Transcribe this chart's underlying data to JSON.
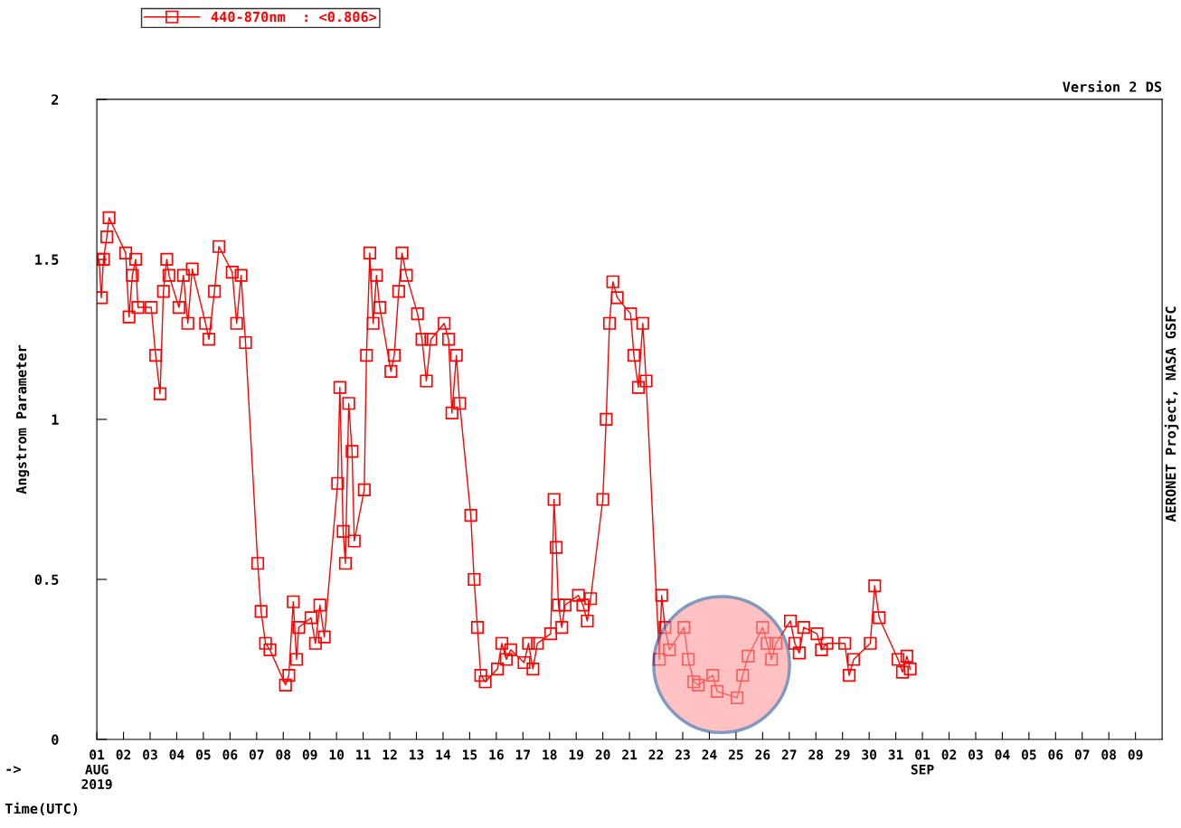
{
  "chart_data": {
    "type": "line",
    "title": "Version 2 DS",
    "xlabel": "Time(UTC)",
    "ylabel": "Angstrom Parameter",
    "annotations": [
      "->",
      "AERONET Project, NASA GSFC"
    ],
    "legend": "top left",
    "marker": "square",
    "line_style": "solid",
    "grid": false,
    "xlim": [
      "2019-08-01",
      "2019-09-10"
    ],
    "ylim": [
      0,
      2
    ],
    "yticks": [
      0,
      0.5,
      1,
      1.5,
      2
    ],
    "xticks": [
      {
        "value": "2019-08-01",
        "label": "01\nAUG\n2019"
      },
      {
        "value": "2019-08-02",
        "label": "02"
      },
      {
        "value": "2019-08-03",
        "label": "03"
      },
      {
        "value": "2019-08-04",
        "label": "04"
      },
      {
        "value": "2019-08-05",
        "label": "05"
      },
      {
        "value": "2019-08-06",
        "label": "06"
      },
      {
        "value": "2019-08-07",
        "label": "07"
      },
      {
        "value": "2019-08-08",
        "label": "08"
      },
      {
        "value": "2019-08-09",
        "label": "09"
      },
      {
        "value": "2019-08-10",
        "label": "10"
      },
      {
        "value": "2019-08-11",
        "label": "11"
      },
      {
        "value": "2019-08-12",
        "label": "12"
      },
      {
        "value": "2019-08-13",
        "label": "13"
      },
      {
        "value": "2019-08-14",
        "label": "14"
      },
      {
        "value": "2019-08-15",
        "label": "15"
      },
      {
        "value": "2019-08-16",
        "label": "16"
      },
      {
        "value": "2019-08-17",
        "label": "17"
      },
      {
        "value": "2019-08-18",
        "label": "18"
      },
      {
        "value": "2019-08-19",
        "label": "19"
      },
      {
        "value": "2019-08-20",
        "label": "20"
      },
      {
        "value": "2019-08-21",
        "label": "21"
      },
      {
        "value": "2019-08-22",
        "label": "22"
      },
      {
        "value": "2019-08-23",
        "label": "23"
      },
      {
        "value": "2019-08-24",
        "label": "24"
      },
      {
        "value": "2019-08-25",
        "label": "25"
      },
      {
        "value": "2019-08-26",
        "label": "26"
      },
      {
        "value": "2019-08-27",
        "label": "27"
      },
      {
        "value": "2019-08-28",
        "label": "28"
      },
      {
        "value": "2019-08-29",
        "label": "29"
      },
      {
        "value": "2019-08-30",
        "label": "30"
      },
      {
        "value": "2019-08-31",
        "label": "31"
      },
      {
        "value": "2019-09-01",
        "label": "01\nSEP"
      },
      {
        "value": "2019-09-02",
        "label": "02"
      },
      {
        "value": "2019-09-03",
        "label": "03"
      },
      {
        "value": "2019-09-04",
        "label": "04"
      },
      {
        "value": "2019-09-05",
        "label": "05"
      },
      {
        "value": "2019-09-06",
        "label": "06"
      },
      {
        "value": "2019-09-07",
        "label": "07"
      },
      {
        "value": "2019-09-08",
        "label": "08"
      },
      {
        "value": "2019-09-09",
        "label": "09"
      }
    ],
    "series": [
      {
        "name": "440-870nm  : <0.806>",
        "color": "#ff0000",
        "x": [
          "2019-08-01T02:00",
          "2019-08-01T04:00",
          "2019-08-01T06:00",
          "2019-08-01T09:00",
          "2019-08-01T11:00",
          "2019-08-02T02:00",
          "2019-08-02T05:00",
          "2019-08-02T08:00",
          "2019-08-02T11:00",
          "2019-08-02T13:00",
          "2019-08-03T01:00",
          "2019-08-03T05:00",
          "2019-08-03T09:00",
          "2019-08-03T12:00",
          "2019-08-03T15:00",
          "2019-08-03T17:00",
          "2019-08-04T02:00",
          "2019-08-04T06:00",
          "2019-08-04T10:00",
          "2019-08-04T14:00",
          "2019-08-05T02:00",
          "2019-08-05T05:00",
          "2019-08-05T10:00",
          "2019-08-05T14:00",
          "2019-08-06T02:00",
          "2019-08-06T06:00",
          "2019-08-06T10:00",
          "2019-08-06T14:00",
          "2019-08-07T01:00",
          "2019-08-07T04:00",
          "2019-08-07T08:00",
          "2019-08-07T12:00",
          "2019-08-08T02:00",
          "2019-08-08T05:00",
          "2019-08-08T09:00",
          "2019-08-08T12:00",
          "2019-08-08T14:00",
          "2019-08-09T01:00",
          "2019-08-09T05:00",
          "2019-08-09T09:00",
          "2019-08-09T13:00",
          "2019-08-10T01:00",
          "2019-08-10T03:00",
          "2019-08-10T06:00",
          "2019-08-10T08:00",
          "2019-08-10T11:00",
          "2019-08-10T14:00",
          "2019-08-10T16:00",
          "2019-08-11T01:00",
          "2019-08-11T03:00",
          "2019-08-11T06:00",
          "2019-08-11T09:00",
          "2019-08-11T12:00",
          "2019-08-11T15:00",
          "2019-08-12T01:00",
          "2019-08-12T04:00",
          "2019-08-12T08:00",
          "2019-08-12T11:00",
          "2019-08-12T15:00",
          "2019-08-13T01:00",
          "2019-08-13T05:00",
          "2019-08-13T09:00",
          "2019-08-13T13:00",
          "2019-08-14T01:00",
          "2019-08-14T05:00",
          "2019-08-14T08:00",
          "2019-08-14T12:00",
          "2019-08-14T15:00",
          "2019-08-15T01:00",
          "2019-08-15T04:00",
          "2019-08-15T07:00",
          "2019-08-15T10:00",
          "2019-08-15T14:00",
          "2019-08-16T01:00",
          "2019-08-16T05:00",
          "2019-08-16T09:00",
          "2019-08-16T13:00",
          "2019-08-17T01:00",
          "2019-08-17T05:00",
          "2019-08-17T09:00",
          "2019-08-17T13:00",
          "2019-08-18T01:00",
          "2019-08-18T04:00",
          "2019-08-18T06:00",
          "2019-08-18T08:00",
          "2019-08-18T11:00",
          "2019-08-18T14:00",
          "2019-08-19T02:00",
          "2019-08-19T06:00",
          "2019-08-19T10:00",
          "2019-08-19T13:00",
          "2019-08-20T00:00",
          "2019-08-20T03:00",
          "2019-08-20T06:00",
          "2019-08-20T09:00",
          "2019-08-20T13:00",
          "2019-08-21T01:00",
          "2019-08-21T04:00",
          "2019-08-21T08:00",
          "2019-08-21T12:00",
          "2019-08-21T15:00",
          "2019-08-22T03:00",
          "2019-08-22T05:00",
          "2019-08-22T08:00",
          "2019-08-22T12:00",
          "2019-08-23T01:00",
          "2019-08-23T05:00",
          "2019-08-23T10:00",
          "2019-08-23T14:00",
          "2019-08-24T03:00",
          "2019-08-24T07:00",
          "2019-08-25T01:00",
          "2019-08-25T06:00",
          "2019-08-25T11:00",
          "2019-08-26T00:00",
          "2019-08-26T04:00",
          "2019-08-26T08:00",
          "2019-08-26T12:00",
          "2019-08-27T01:00",
          "2019-08-27T05:00",
          "2019-08-27T09:00",
          "2019-08-27T13:00",
          "2019-08-28T01:00",
          "2019-08-28T05:00",
          "2019-08-28T10:00",
          "2019-08-29T02:00",
          "2019-08-29T06:00",
          "2019-08-29T10:00",
          "2019-08-30T01:00",
          "2019-08-30T05:00",
          "2019-08-30T09:00",
          "2019-08-31T02:00",
          "2019-08-31T06:00",
          "2019-08-31T10:00",
          "2019-08-31T13:00"
        ],
        "values": [
          1.5,
          1.38,
          1.5,
          1.57,
          1.63,
          1.52,
          1.32,
          1.45,
          1.5,
          1.35,
          1.35,
          1.2,
          1.08,
          1.4,
          1.5,
          1.45,
          1.35,
          1.45,
          1.3,
          1.47,
          1.3,
          1.25,
          1.4,
          1.54,
          1.46,
          1.3,
          1.45,
          1.24,
          0.55,
          0.4,
          0.3,
          0.28,
          0.17,
          0.2,
          0.43,
          0.25,
          0.35,
          0.38,
          0.3,
          0.42,
          0.32,
          0.8,
          1.1,
          0.65,
          0.55,
          1.05,
          0.9,
          0.62,
          0.78,
          1.2,
          1.52,
          1.3,
          1.45,
          1.35,
          1.15,
          1.2,
          1.4,
          1.52,
          1.45,
          1.33,
          1.25,
          1.12,
          1.25,
          1.3,
          1.25,
          1.02,
          1.2,
          1.05,
          0.7,
          0.5,
          0.35,
          0.2,
          0.18,
          0.22,
          0.3,
          0.25,
          0.28,
          0.24,
          0.3,
          0.22,
          0.3,
          0.33,
          0.75,
          0.6,
          0.42,
          0.35,
          0.42,
          0.45,
          0.42,
          0.37,
          0.44,
          0.75,
          1.0,
          1.3,
          1.43,
          1.38,
          1.33,
          1.2,
          1.1,
          1.3,
          1.12,
          0.25,
          0.45,
          0.35,
          0.28,
          0.35,
          0.25,
          0.18,
          0.17,
          0.2,
          0.15,
          0.13,
          0.2,
          0.26,
          0.35,
          0.3,
          0.25,
          0.3,
          0.37,
          0.3,
          0.27,
          0.35,
          0.33,
          0.28,
          0.3,
          0.3,
          0.2,
          0.25,
          0.3,
          0.48,
          0.38,
          0.25,
          0.21,
          0.26,
          0.22
        ]
      }
    ]
  }
}
